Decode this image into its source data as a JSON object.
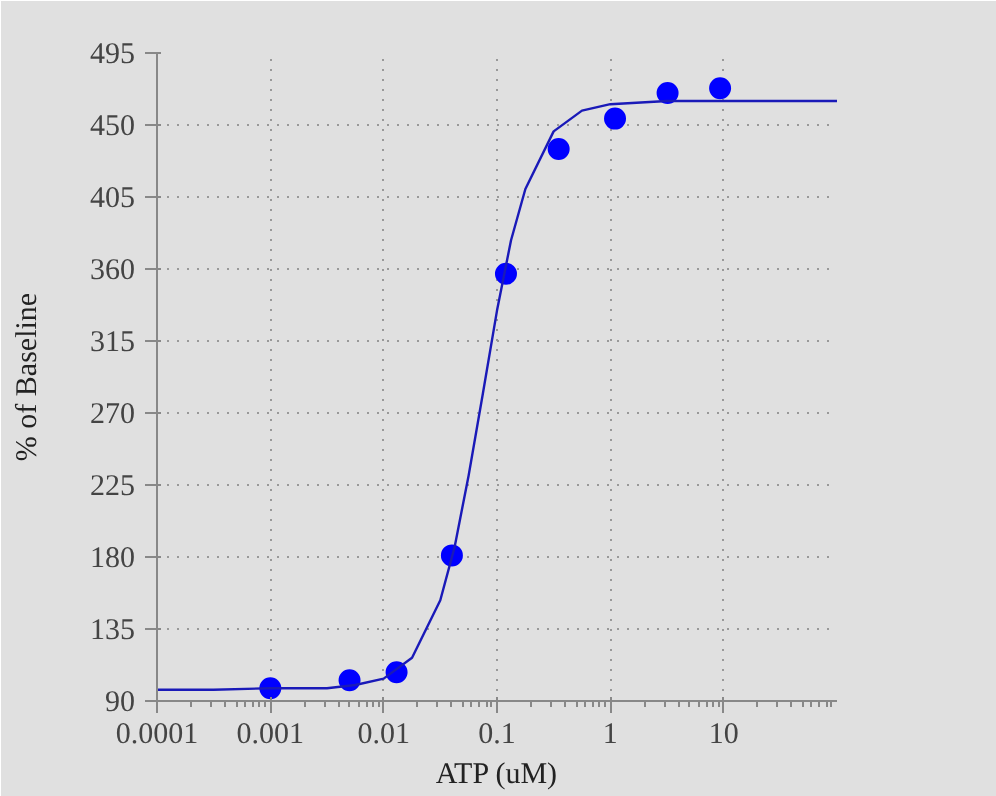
{
  "chart_data": {
    "type": "scatter",
    "xlabel": "ATP (uM)",
    "ylabel": "% of Baseline",
    "log": "x",
    "grid": true,
    "marker": "circle",
    "xlim": [
      0.0001,
      100
    ],
    "xticks": [
      0.0001,
      0.001,
      0.01,
      0.1,
      1,
      10
    ],
    "ylim": [
      90,
      495
    ],
    "yticks": [
      90,
      135,
      180,
      225,
      270,
      315,
      360,
      405,
      450,
      495
    ],
    "series": [
      {
        "color": "#0000ff",
        "x": [
          0.001,
          0.005,
          0.013,
          0.04,
          0.12,
          0.35,
          1.1,
          3.2,
          9.3
        ],
        "values": [
          98,
          103,
          108,
          181,
          357,
          435,
          454,
          470,
          473
        ]
      },
      {
        "type": "line",
        "marker": "none",
        "color": "#1a1ab8",
        "x": [
          0.0001,
          0.000316,
          0.001,
          0.00316,
          0.00562,
          0.01,
          0.0178,
          0.0316,
          0.0422,
          0.0562,
          0.075,
          0.1,
          0.133,
          0.178,
          0.316,
          0.562,
          1,
          3.16,
          10,
          100
        ],
        "values": [
          97,
          97,
          98,
          98,
          100,
          104,
          117,
          153,
          186,
          231,
          282,
          334,
          378,
          410,
          446,
          459,
          463,
          465,
          465,
          465
        ]
      }
    ]
  }
}
